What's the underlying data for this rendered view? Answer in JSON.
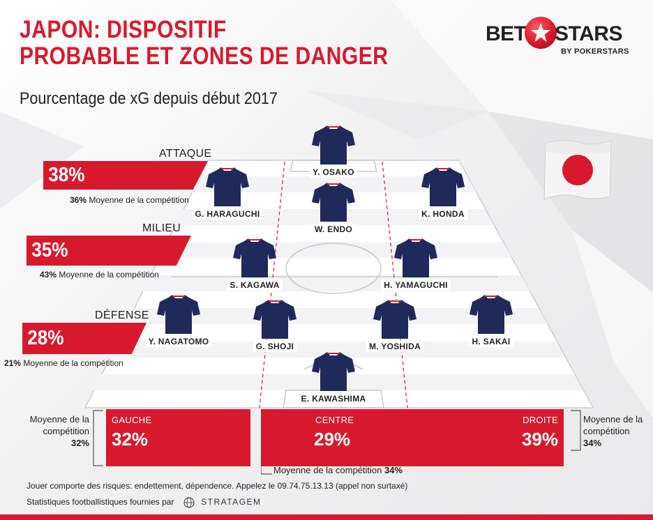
{
  "header": {
    "title_line1": "JAPON: DISPOSITIF",
    "title_line2": "PROBABLE ET ZONES DE DANGER",
    "subtitle": "Pourcentage de xG depuis début 2017"
  },
  "logo": {
    "word1": "BET",
    "word2": "STARS",
    "tagline": "BY POKERSTARS"
  },
  "zones": {
    "attack": {
      "label": "ATTAQUE",
      "value": "38%",
      "avg_value": "36%",
      "avg_text": "Moyenne de la compétition"
    },
    "midfield": {
      "label": "MILIEU",
      "value": "35%",
      "avg_value": "43%",
      "avg_text": "Moyenne de la compétition"
    },
    "defense": {
      "label": "DÉFENSE",
      "value": "28%",
      "avg_value": "21%",
      "avg_text": "Moyenne de la compétition"
    }
  },
  "players": [
    {
      "name": "Y. OSAKO"
    },
    {
      "name": "G. HARAGUCHI"
    },
    {
      "name": "W. ENDO"
    },
    {
      "name": "K. HONDA"
    },
    {
      "name": "S. KAGAWA"
    },
    {
      "name": "H. YAMAGUCHI"
    },
    {
      "name": "Y. NAGATOMO"
    },
    {
      "name": "G. SHOJI"
    },
    {
      "name": "M. YOSHIDA"
    },
    {
      "name": "H. SAKAI"
    },
    {
      "name": "E. KAWASHIMA"
    }
  ],
  "channels": {
    "left": {
      "label": "GAUCHE",
      "value": "32%",
      "avg_line1": "Moyenne de la",
      "avg_line2": "compétition",
      "avg_value": "32%"
    },
    "center": {
      "label": "CENTRE",
      "value": "29%",
      "avg_text": "Moyenne de la compétition",
      "avg_value": "34%"
    },
    "right": {
      "label": "DROITE",
      "value": "39%",
      "avg_line1": "Moyenne de la",
      "avg_line2": "compétition",
      "avg_value": "34%"
    }
  },
  "footer": {
    "disclaimer": "Jouer comporte des risques: endettement, dépendence. Appelez le 09.74.75.13.13 (appel non surtaxé)",
    "stats_text": "Statistiques footballistiques fournies par",
    "stats_provider": "STRATAGEM"
  },
  "icons": {
    "flag": "japan-flag-icon",
    "shirt": "jersey-icon",
    "logo_mark": "star-ball-icon",
    "provider_mark": "stratagem-globe-icon"
  },
  "colors": {
    "accent": "#d7192e",
    "shirt": "#1f2a5a",
    "pitch_line": "#d7192e"
  }
}
